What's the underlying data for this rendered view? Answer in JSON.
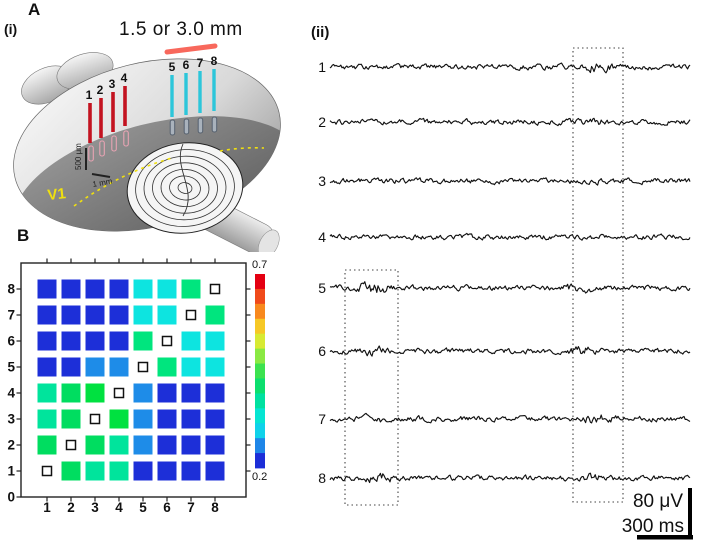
{
  "colors": {
    "annotation_red": "#f8544a",
    "electrode_red": "#c31320",
    "electrode_cyan": "#2cc6da",
    "v1_yellow": "#f0e010",
    "trace_black": "#111111",
    "cell_codes": {
      "B": "#1d2fd8",
      "b": "#1e8ce8",
      "C": "#0de4e0",
      "E": "#00e57e",
      "T": "#00e49c",
      "G": "#00dd60",
      "g": "#00e140"
    }
  },
  "panel_a": {
    "label": "A",
    "sub_label": "(i)",
    "distance_annotation": "1.5 or 3.0 mm",
    "deep_electrode_labels": [
      "1",
      "2",
      "3",
      "4"
    ],
    "surface_electrode_labels": [
      "5",
      "6",
      "7",
      "8"
    ],
    "depth_scale_label": "500 μm",
    "width_scale_label": "1 mm",
    "region_label": "V1"
  },
  "panel_a_ii": {
    "label": "(ii)",
    "trace_labels": [
      "1",
      "2",
      "3",
      "4",
      "5",
      "6",
      "7",
      "8"
    ],
    "voltage_scale": "80 μV",
    "time_scale": "300 ms"
  },
  "panel_b": {
    "label": "B",
    "x_tick_labels": [
      "1",
      "2",
      "3",
      "4",
      "5",
      "6",
      "7",
      "8"
    ],
    "y_tick_labels": [
      "0",
      "1",
      "2",
      "3",
      "4",
      "5",
      "6",
      "7",
      "8"
    ],
    "colorbar_max": "0.7",
    "colorbar_min": "0.2",
    "colorbar_colors": [
      "#e40012",
      "#f04a1b",
      "#f8891e",
      "#f6c826",
      "#d8ea33",
      "#8ae943",
      "#3ce24f",
      "#0cdf6e",
      "#00e1a0",
      "#06e5d2",
      "#0fd2ea",
      "#1e86e8",
      "#1c2ed8"
    ]
  },
  "chart_data": {
    "type": "heatmap",
    "title": "",
    "xlabel": "",
    "ylabel": "",
    "description": "Pairwise correlation between electrodes 1-8; diagonal cells drawn as small open squares",
    "x_categories": [
      1,
      2,
      3,
      4,
      5,
      6,
      7,
      8
    ],
    "y_categories_top_to_bottom": [
      8,
      7,
      6,
      5,
      4,
      3,
      2,
      1
    ],
    "colorbar_range": [
      0.2,
      0.7
    ],
    "colormap": "jet",
    "legend_position": "right",
    "cell_color_codes": [
      [
        "B",
        "B",
        "B",
        "B",
        "C",
        "C",
        "E",
        null
      ],
      [
        "B",
        "B",
        "B",
        "B",
        "C",
        "C",
        null,
        "E"
      ],
      [
        "B",
        "B",
        "B",
        "B",
        "E",
        null,
        "C",
        "C"
      ],
      [
        "B",
        "B",
        "b",
        "b",
        null,
        "E",
        "C",
        "C"
      ],
      [
        "T",
        "G",
        "g",
        null,
        "b",
        "B",
        "B",
        "B"
      ],
      [
        "T",
        "G",
        null,
        "g",
        "b",
        "B",
        "B",
        "B"
      ],
      [
        "G",
        null,
        "G",
        "T",
        "b",
        "B",
        "B",
        "B"
      ],
      [
        null,
        "G",
        "T",
        "T",
        "B",
        "B",
        "B",
        "B"
      ]
    ],
    "values": [
      [
        0.22,
        0.22,
        0.22,
        0.22,
        0.38,
        0.38,
        0.45,
        null
      ],
      [
        0.22,
        0.22,
        0.22,
        0.22,
        0.38,
        0.38,
        null,
        0.45
      ],
      [
        0.22,
        0.22,
        0.22,
        0.22,
        0.45,
        null,
        0.38,
        0.38
      ],
      [
        0.22,
        0.22,
        0.3,
        0.3,
        null,
        0.45,
        0.38,
        0.38
      ],
      [
        0.44,
        0.48,
        0.5,
        null,
        0.3,
        0.22,
        0.22,
        0.22
      ],
      [
        0.44,
        0.48,
        null,
        0.5,
        0.3,
        0.22,
        0.22,
        0.22
      ],
      [
        0.48,
        null,
        0.48,
        0.44,
        0.3,
        0.22,
        0.22,
        0.22
      ],
      [
        null,
        0.48,
        0.44,
        0.44,
        0.22,
        0.22,
        0.22,
        0.22
      ]
    ]
  }
}
